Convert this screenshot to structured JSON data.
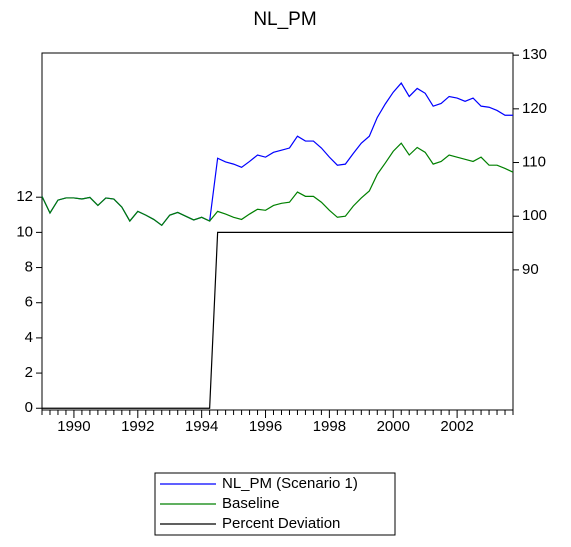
{
  "chart_data": {
    "type": "line",
    "title": "NL_PM",
    "categories": [
      null,
      null,
      null,
      null,
      "1990",
      null,
      null,
      null,
      null,
      null,
      null,
      null,
      "1992",
      null,
      null,
      null,
      null,
      null,
      null,
      null,
      "1994",
      null,
      null,
      null,
      null,
      null,
      null,
      null,
      "1996",
      null,
      null,
      null,
      null,
      null,
      null,
      null,
      "1998",
      null,
      null,
      null,
      null,
      null,
      null,
      null,
      "2000",
      null,
      null,
      null,
      null,
      null,
      null,
      null,
      "2002",
      null,
      null,
      null,
      null,
      null,
      null,
      null
    ],
    "series": [
      {
        "name": "NL_PM (Scenario 1)",
        "color": "#0000ff",
        "axis": "y2",
        "values": [
          103.7,
          100.6,
          103.0,
          103.4,
          103.4,
          103.2,
          103.5,
          102.0,
          103.4,
          103.2,
          101.7,
          99.1,
          100.9,
          100.2,
          99.4,
          98.3,
          100.2,
          100.7,
          100.0,
          99.3,
          99.8,
          99.1,
          110.8,
          110.1,
          109.7,
          109.1,
          110.2,
          111.4,
          111.0,
          111.9,
          112.3,
          112.7,
          114.9,
          114.0,
          114.0,
          112.7,
          111.0,
          109.5,
          109.7,
          111.7,
          113.6,
          114.9,
          118.4,
          120.9,
          123.1,
          124.8,
          122.3,
          123.8,
          122.9,
          120.5,
          121.0,
          122.3,
          122.0,
          121.4,
          122.0,
          120.5,
          120.3,
          119.7,
          118.8,
          118.8
        ]
      },
      {
        "name": "Baseline",
        "color": "#008000",
        "axis": "y2",
        "values": [
          103.7,
          100.6,
          103.0,
          103.4,
          103.4,
          103.2,
          103.5,
          102.0,
          103.4,
          103.2,
          101.7,
          99.1,
          100.9,
          100.2,
          99.4,
          98.3,
          100.2,
          100.7,
          100.0,
          99.3,
          99.8,
          99.1,
          100.9,
          100.4,
          99.8,
          99.4,
          100.4,
          101.3,
          101.1,
          102.0,
          102.4,
          102.6,
          104.5,
          103.7,
          103.7,
          102.6,
          101.1,
          99.8,
          100.0,
          101.9,
          103.4,
          104.7,
          107.8,
          109.9,
          112.1,
          113.6,
          111.4,
          112.8,
          111.9,
          109.7,
          110.2,
          111.4,
          111.0,
          110.6,
          110.2,
          111.0,
          109.5,
          109.5,
          108.9,
          108.2
        ]
      },
      {
        "name": "Percent Deviation",
        "color": "#000000",
        "values": [
          0,
          0,
          0,
          0,
          0,
          0,
          0,
          0,
          0,
          0,
          0,
          0,
          0,
          0,
          0,
          0,
          0,
          0,
          0,
          0,
          0,
          0,
          10,
          10,
          10,
          10,
          10,
          10,
          10,
          10,
          10,
          10,
          10,
          10,
          10,
          10,
          10,
          10,
          10,
          10,
          10,
          10,
          10,
          10,
          10,
          10,
          10,
          10,
          10,
          10,
          10,
          10,
          10,
          10,
          10,
          10,
          10,
          10,
          10,
          10
        ]
      }
    ],
    "ylim": [
      -0.1,
      20.2
    ],
    "yticks": [
      0,
      2,
      4,
      6,
      8,
      10,
      12
    ],
    "y2lim": [
      63.9,
      130.4
    ],
    "y2ticks": [
      90,
      100,
      110,
      120,
      130
    ],
    "legend": "bottom"
  }
}
